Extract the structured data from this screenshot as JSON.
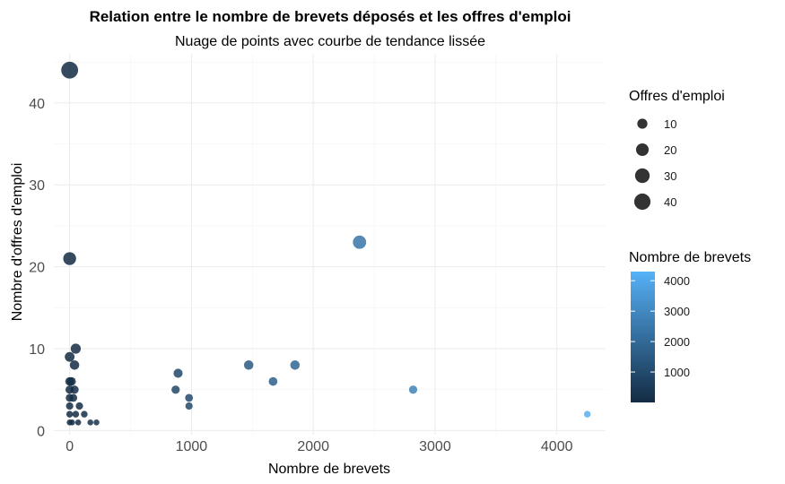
{
  "chart_data": {
    "type": "scatter",
    "title": "Relation entre le nombre de brevets déposés et les offres d'emploi",
    "subtitle": "Nuage de points avec courbe de tendance lissée",
    "xlabel": "Nombre de brevets",
    "ylabel": "Nombre d'offres d'emploi",
    "xlim": [
      -130,
      4400
    ],
    "ylim": [
      -0.5,
      46
    ],
    "x_ticks": [
      0,
      1000,
      2000,
      3000,
      4000
    ],
    "y_ticks": [
      0,
      10,
      20,
      30,
      40
    ],
    "grid": true,
    "legend_position": "right",
    "size_legend": {
      "title": "Offres d'emploi",
      "entries": [
        10,
        20,
        30,
        40
      ]
    },
    "color_legend": {
      "title": "Nombre de brevets",
      "ticks": [
        1000,
        2000,
        3000,
        4000
      ],
      "range": [
        0,
        4300
      ],
      "low_color": "#132B43",
      "high_color": "#56B1F7"
    },
    "points": [
      {
        "x": 0,
        "y": 44
      },
      {
        "x": 2380,
        "y": 23
      },
      {
        "x": 0,
        "y": 21
      },
      {
        "x": 50,
        "y": 10
      },
      {
        "x": 0,
        "y": 9
      },
      {
        "x": 40,
        "y": 8
      },
      {
        "x": 1470,
        "y": 8
      },
      {
        "x": 1850,
        "y": 8
      },
      {
        "x": 890,
        "y": 7
      },
      {
        "x": 1670,
        "y": 6
      },
      {
        "x": 0,
        "y": 6
      },
      {
        "x": 15,
        "y": 6
      },
      {
        "x": 0,
        "y": 5
      },
      {
        "x": 40,
        "y": 5
      },
      {
        "x": 870,
        "y": 5
      },
      {
        "x": 2820,
        "y": 5
      },
      {
        "x": 0,
        "y": 4
      },
      {
        "x": 30,
        "y": 4
      },
      {
        "x": 980,
        "y": 4
      },
      {
        "x": 0,
        "y": 3
      },
      {
        "x": 80,
        "y": 3
      },
      {
        "x": 980,
        "y": 3
      },
      {
        "x": 0,
        "y": 2
      },
      {
        "x": 50,
        "y": 2
      },
      {
        "x": 120,
        "y": 2
      },
      {
        "x": 4250,
        "y": 2
      },
      {
        "x": 0,
        "y": 1
      },
      {
        "x": 20,
        "y": 1
      },
      {
        "x": 70,
        "y": 1
      },
      {
        "x": 170,
        "y": 1
      },
      {
        "x": 220,
        "y": 1
      }
    ]
  }
}
